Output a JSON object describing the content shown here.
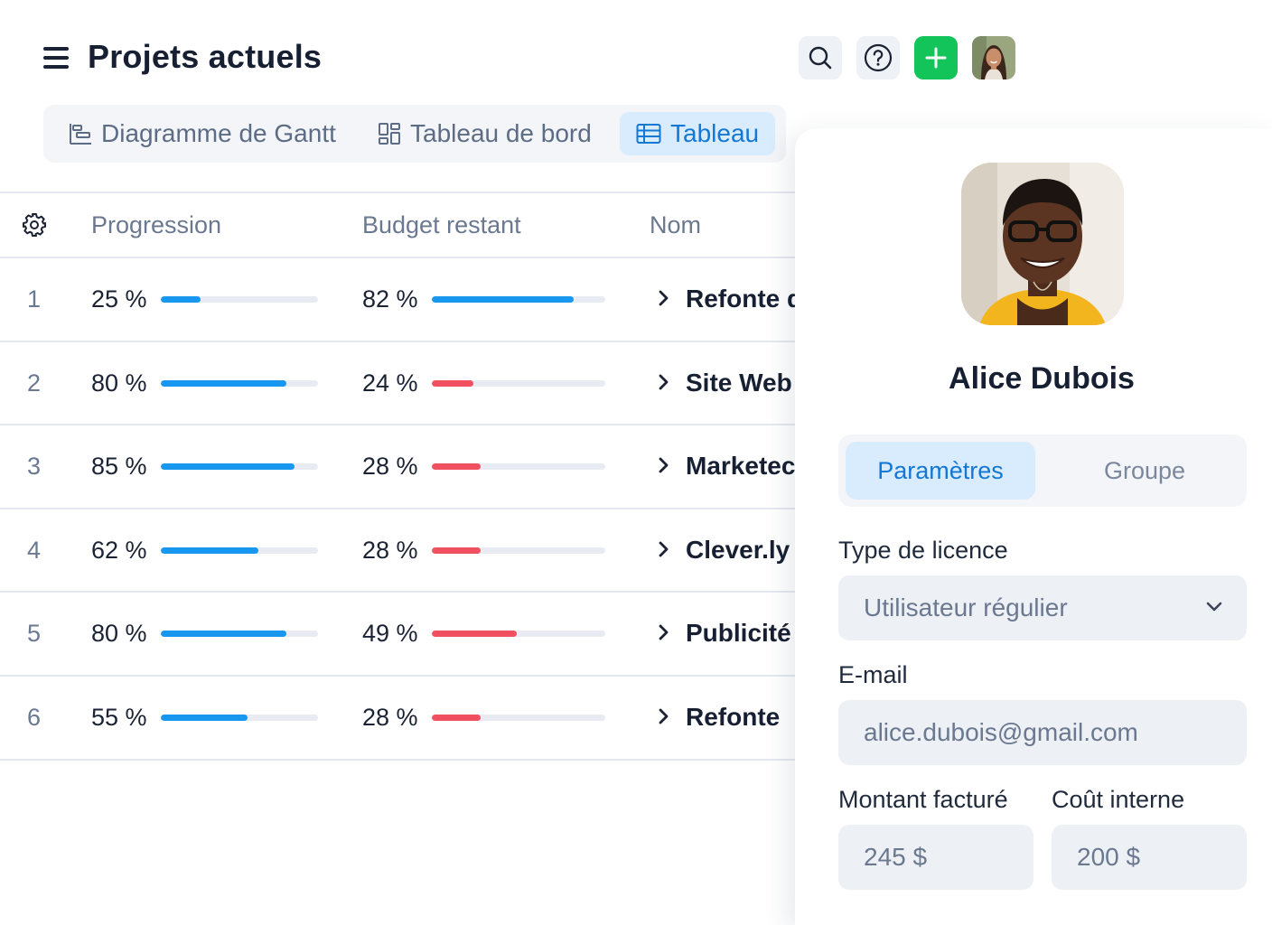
{
  "header": {
    "title": "Projets actuels"
  },
  "view_tabs": [
    {
      "label": "Diagramme de Gantt",
      "active": false
    },
    {
      "label": "Tableau de bord",
      "active": false
    },
    {
      "label": "Tableau",
      "active": true
    }
  ],
  "table": {
    "columns": [
      "Progression",
      "Budget restant",
      "Nom"
    ],
    "rows": [
      {
        "num": "1",
        "progress_label": "25 %",
        "progress": 0.25,
        "budget_label": "82 %",
        "budget": 0.82,
        "budget_status": "ok",
        "name": "Refonte d"
      },
      {
        "num": "2",
        "progress_label": "80 %",
        "progress": 0.8,
        "budget_label": "24 %",
        "budget": 0.24,
        "budget_status": "low",
        "name": "Site Web"
      },
      {
        "num": "3",
        "progress_label": "85 %",
        "progress": 0.85,
        "budget_label": "28 %",
        "budget": 0.28,
        "budget_status": "low",
        "name": "Marketec"
      },
      {
        "num": "4",
        "progress_label": "62 %",
        "progress": 0.62,
        "budget_label": "28 %",
        "budget": 0.28,
        "budget_status": "low",
        "name": "Clever.ly"
      },
      {
        "num": "5",
        "progress_label": "80 %",
        "progress": 0.8,
        "budget_label": "49 %",
        "budget": 0.49,
        "budget_status": "low",
        "name": "Publicité"
      },
      {
        "num": "6",
        "progress_label": "55 %",
        "progress": 0.55,
        "budget_label": "28 %",
        "budget": 0.28,
        "budget_status": "low",
        "name": "Refonte"
      }
    ]
  },
  "profile": {
    "name": "Alice Dubois",
    "tabs": [
      {
        "label": "Paramètres",
        "active": true
      },
      {
        "label": "Groupe",
        "active": false
      }
    ],
    "license_label": "Type de licence",
    "license_value": "Utilisateur régulier",
    "email_label": "E-mail",
    "email_value": "alice.dubois@gmail.com",
    "billed_label": "Montant facturé",
    "billed_value": "245 $",
    "internal_cost_label": "Coût interne",
    "internal_cost_value": "200 $"
  },
  "colors": {
    "accent": "#1377d4",
    "progress_bar": "#1797ef",
    "budget_low": "#f0505f",
    "add_button": "#13c45a"
  },
  "icons": {
    "menu": "menu-icon",
    "search": "search-icon",
    "help": "help-icon",
    "add": "plus-icon",
    "settings": "gear-icon",
    "row_expand": "chevron-right-icon",
    "dropdown": "chevron-down-icon"
  }
}
